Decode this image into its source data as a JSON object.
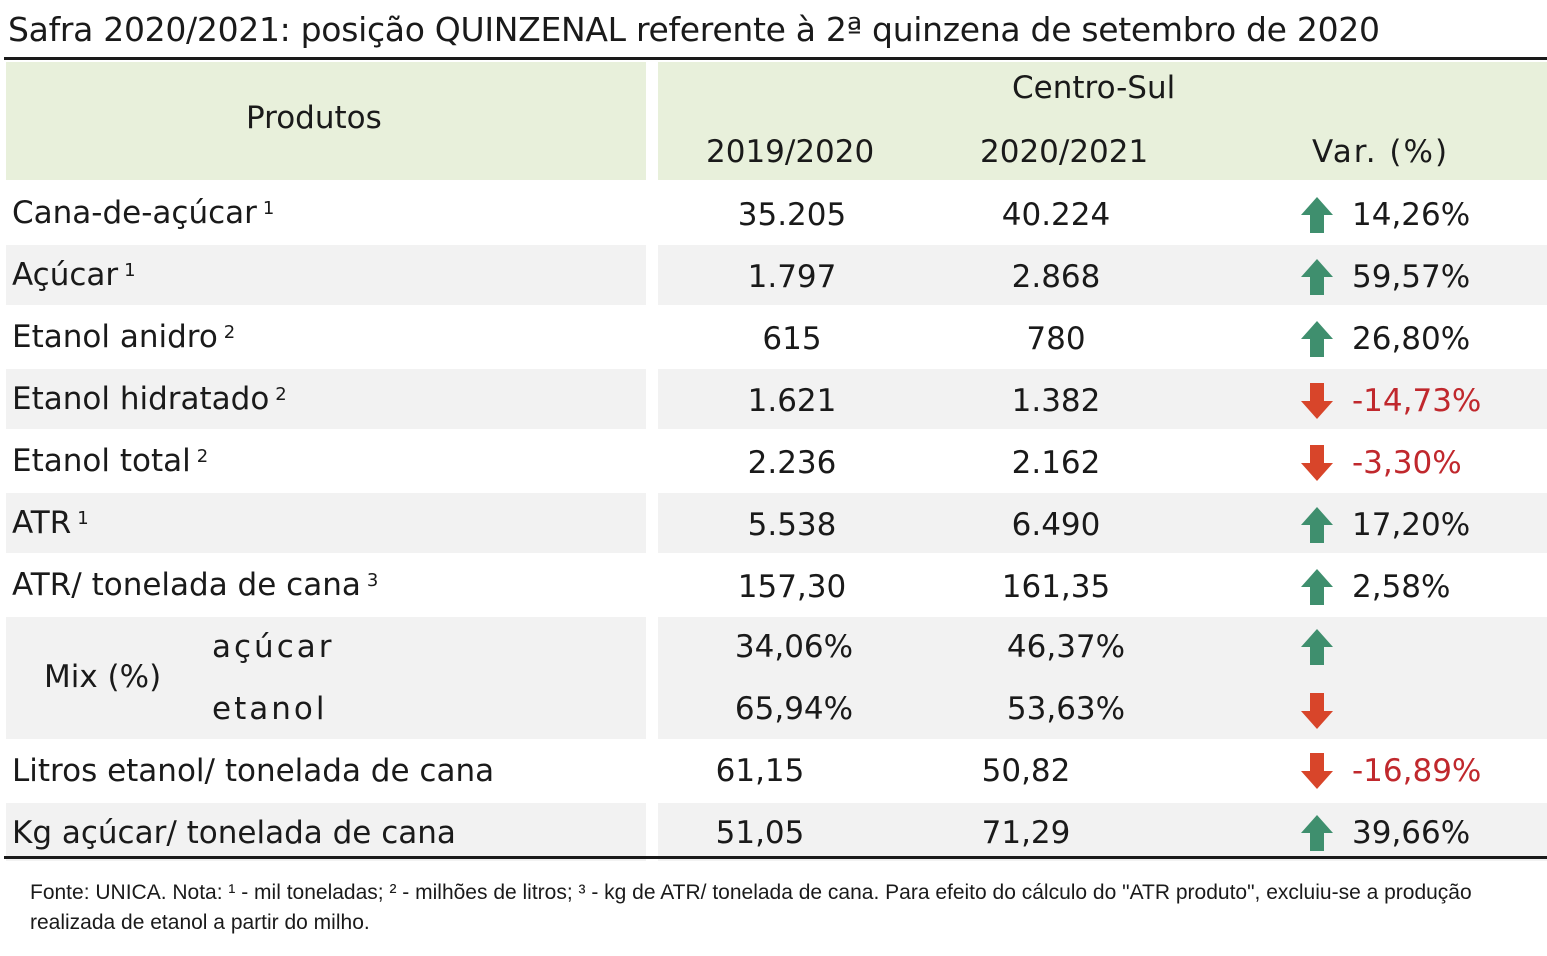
{
  "title": "Safra 2020/2021: posição QUINZENAL referente à 2ª quinzena de setembro de 2020",
  "header": {
    "products": "Produtos",
    "region": "Centro-Sul",
    "col1": "2019/2020",
    "col2": "2020/2021",
    "col3": "Var. (%)"
  },
  "rows": [
    {
      "label": "Cana-de-açúcar",
      "sup": "1",
      "v1": "35.205",
      "v2": "40.224",
      "var": "14,26%",
      "dir": "up"
    },
    {
      "label": "Açúcar",
      "sup": "1",
      "v1": "1.797",
      "v2": "2.868",
      "var": "59,57%",
      "dir": "up"
    },
    {
      "label": "Etanol anidro",
      "sup": "2",
      "v1": "615",
      "v2": "780",
      "var": "26,80%",
      "dir": "up"
    },
    {
      "label": "Etanol hidratado",
      "sup": "2",
      "v1": "1.621",
      "v2": "1.382",
      "var": "-14,73%",
      "dir": "down"
    },
    {
      "label": "Etanol total",
      "sup": "2",
      "v1": "2.236",
      "v2": "2.162",
      "var": "-3,30%",
      "dir": "down"
    },
    {
      "label": "ATR",
      "sup": "1",
      "v1": "5.538",
      "v2": "6.490",
      "var": "17,20%",
      "dir": "up"
    },
    {
      "label": "ATR/ tonelada de cana",
      "sup": "3",
      "v1": "157,30",
      "v2": "161,35",
      "var": "2,58%",
      "dir": "up"
    }
  ],
  "mix": {
    "label": "Mix (%)",
    "sugar": {
      "label": "açúcar",
      "v1": "34,06%",
      "v2": "46,37%",
      "dir": "up"
    },
    "ethanol": {
      "label": "etanol",
      "v1": "65,94%",
      "v2": "53,63%",
      "dir": "down"
    }
  },
  "rows2": [
    {
      "label": "Litros etanol/ tonelada de cana",
      "v1": "61,15",
      "v2": "50,82",
      "var": "-16,89%",
      "dir": "down"
    },
    {
      "label": "Kg açúcar/ tonelada de cana",
      "v1": "51,05",
      "v2": "71,29",
      "var": "39,66%",
      "dir": "up"
    }
  ],
  "footnote": "Fonte: UNICA. Nota: ¹ - mil toneladas; ² - milhões de litros; ³ - kg de ATR/ tonelada de cana. Para efeito do cálculo do \"ATR produto\", excluiu-se a produção realizada de etanol a partir do milho.",
  "colors": {
    "header_bg": "#e8f0db",
    "row_bg": "#f2f2f2",
    "up_arrow": "#3f8f6e",
    "down_arrow": "#d8452a",
    "negative_text": "#c0282d"
  }
}
